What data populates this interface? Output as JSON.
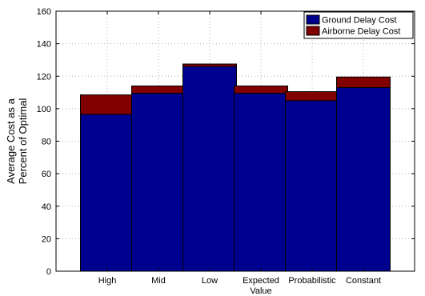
{
  "chart_data": {
    "type": "bar",
    "stacked": true,
    "categories": [
      [
        "High"
      ],
      [
        "Mid"
      ],
      [
        "Low"
      ],
      [
        "Expected",
        "Value"
      ],
      [
        "Probabilistic"
      ],
      [
        "Constant"
      ]
    ],
    "series": [
      {
        "name": "Ground Delay Cost",
        "color": "#00008f",
        "values": [
          96.5,
          109.5,
          126,
          109.5,
          105,
          113
        ]
      },
      {
        "name": "Airborne Delay Cost",
        "color": "#800000",
        "values": [
          12,
          4.5,
          1.5,
          4.5,
          5.5,
          6.5
        ]
      }
    ],
    "ylabel": [
      "Average Cost as a",
      "Percent of Optimal"
    ],
    "xlabel": "",
    "title": "",
    "ylim": [
      0,
      160
    ],
    "yticks": [
      0,
      20,
      40,
      60,
      80,
      100,
      120,
      140,
      160
    ],
    "grid": true,
    "legend_position": "top-right"
  }
}
